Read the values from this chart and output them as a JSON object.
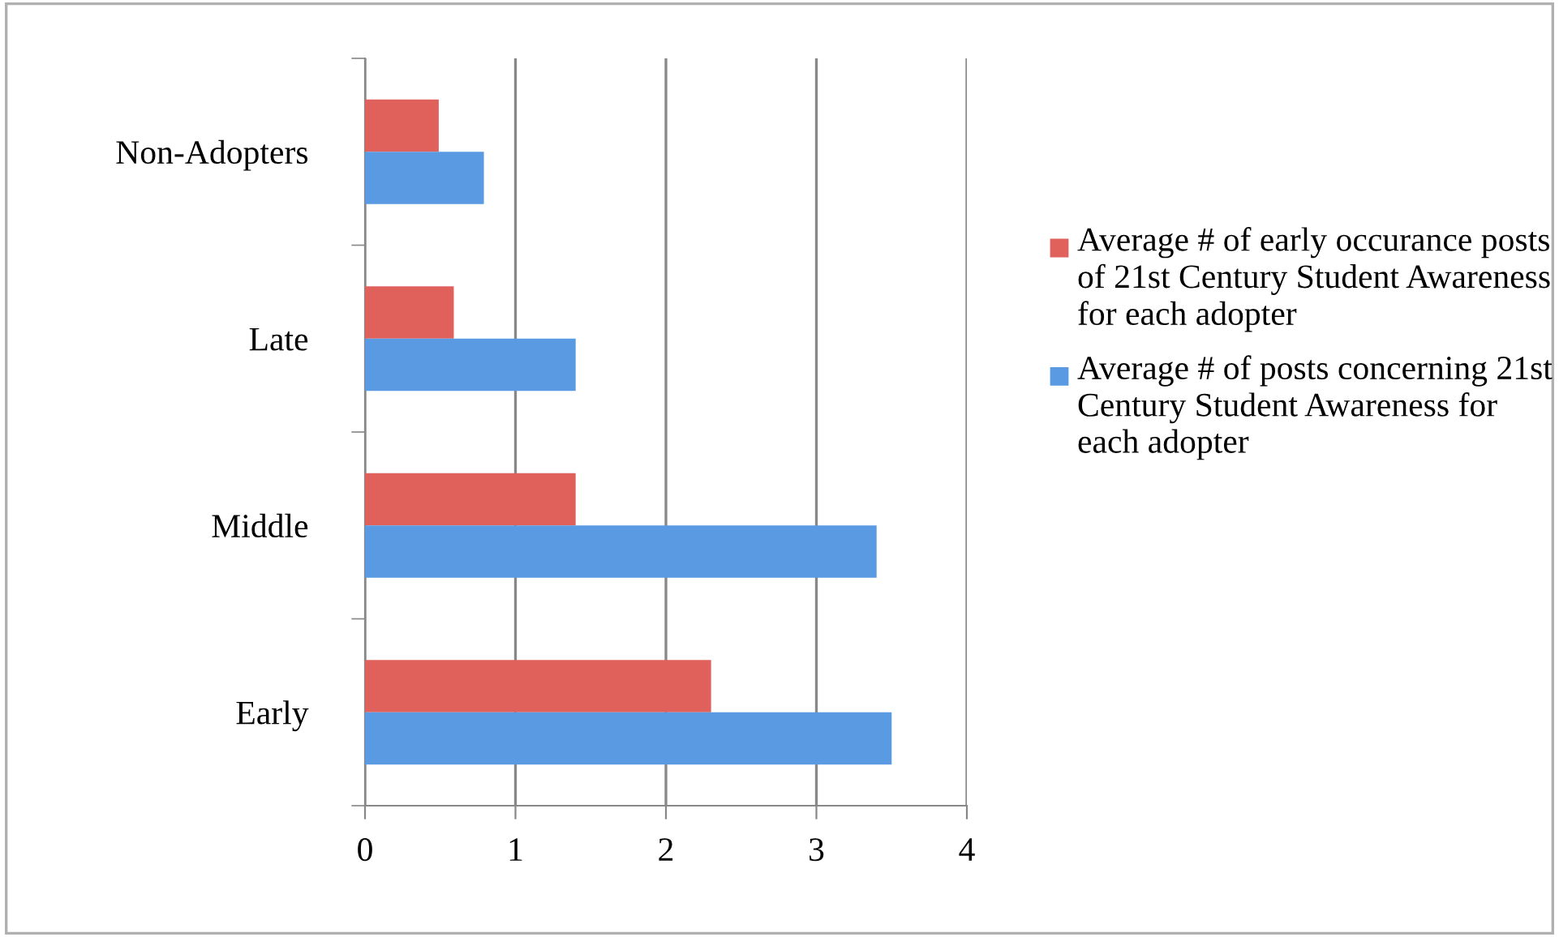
{
  "chart_data": {
    "type": "bar",
    "orientation": "horizontal",
    "categories": [
      "Non-Adopters",
      "Late",
      "Middle",
      "Early"
    ],
    "series": [
      {
        "name": "Average # of early occurance posts of 21st Century Student Awareness for each adopter",
        "color": "#e0605c",
        "values": [
          0.49,
          0.59,
          1.4,
          2.3
        ]
      },
      {
        "name": "Average # of posts concerning 21st Century Student Awareness for each adopter",
        "color": "#5a9ae2",
        "values": [
          0.79,
          1.4,
          3.4,
          3.5
        ]
      }
    ],
    "xlim": [
      0,
      4
    ],
    "xticks": [
      0,
      1,
      2,
      3,
      4
    ],
    "grid": "x",
    "legend": "right"
  }
}
